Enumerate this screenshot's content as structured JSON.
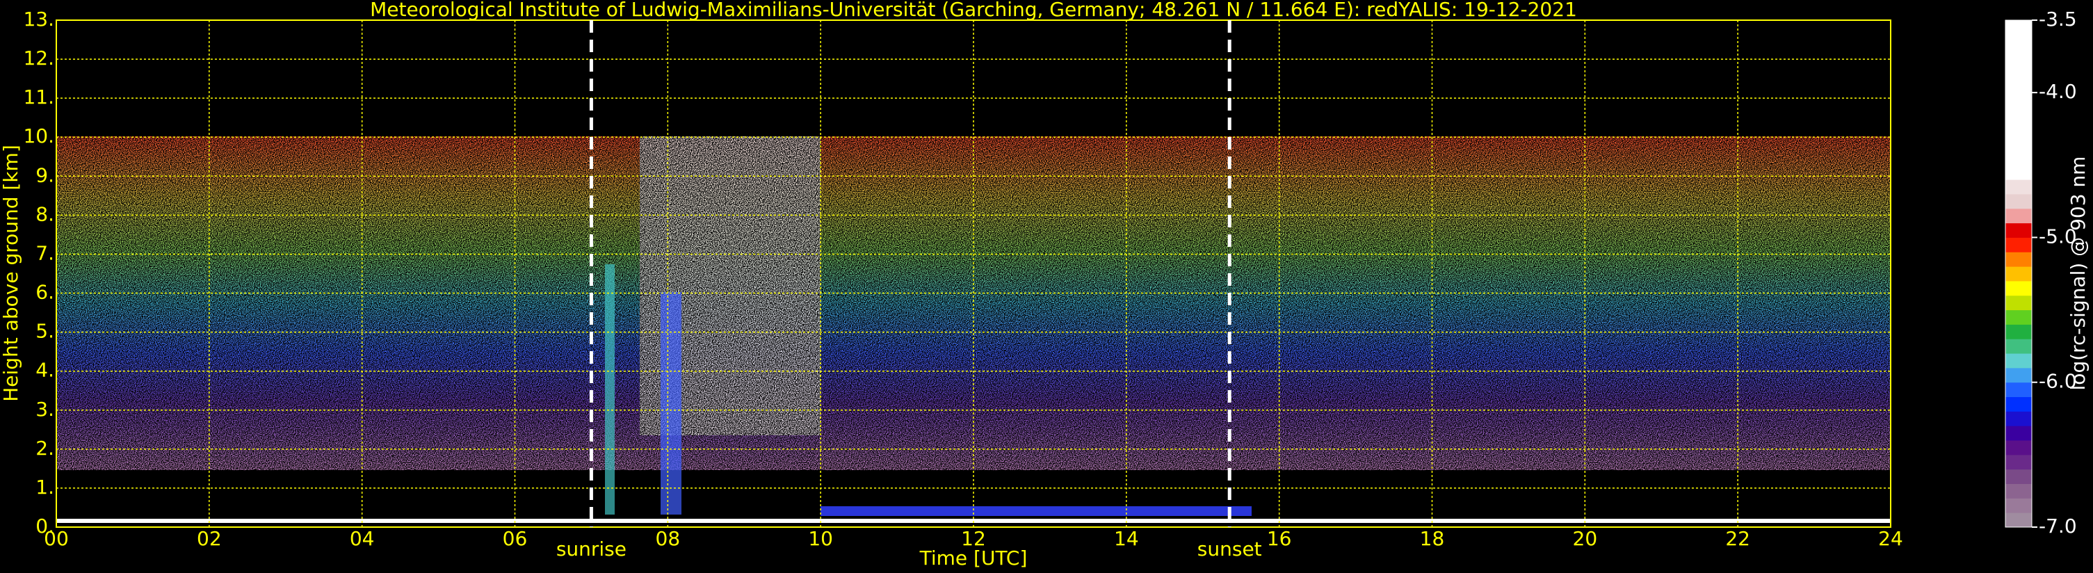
{
  "chart_data": {
    "type": "heatmap",
    "title": "Meteorological Institute of Ludwig-Maximilians-Universität (Garching, Germany; 48.261 N / 11.664 E):    redYALIS: 19-12-2021",
    "x_label": "Time [UTC]",
    "y_label": "Height above ground [km]",
    "xlim": [
      0,
      24
    ],
    "xticks": [
      {
        "value": 0,
        "label": "00"
      },
      {
        "value": 2,
        "label": "02"
      },
      {
        "value": 4,
        "label": "04"
      },
      {
        "value": 6,
        "label": "06"
      },
      {
        "value": 8,
        "label": "08"
      },
      10,
      12,
      14,
      16,
      18,
      20,
      22,
      24
    ],
    "ylim": [
      0,
      13
    ],
    "yticks": [
      {
        "value": 0,
        "label": "0."
      },
      {
        "value": 1,
        "label": "1."
      },
      {
        "value": 2,
        "label": "2."
      },
      {
        "value": 3,
        "label": "3."
      },
      {
        "value": 4,
        "label": "4."
      },
      {
        "value": 5,
        "label": "5."
      },
      {
        "value": 6,
        "label": "6."
      },
      {
        "value": 7,
        "label": "7."
      },
      {
        "value": 8,
        "label": "8."
      },
      {
        "value": 9,
        "label": "9."
      },
      {
        "value": 10,
        "label": "10."
      },
      {
        "value": 11,
        "label": "11."
      },
      {
        "value": 12,
        "label": "12."
      },
      {
        "value": 13,
        "label": "13."
      }
    ],
    "grid": true,
    "grid_color": "#ffff00",
    "annotations": [
      {
        "text": "sunrise",
        "x": 7.0
      },
      {
        "text": "sunset",
        "x": 15.35
      }
    ],
    "colorbar": {
      "label": "log(rc-signal) @ 903 nm",
      "clim": [
        -7.0,
        -3.5
      ],
      "ticks": [
        -3.5,
        {
          "value": -4.0,
          "label": "-4.0"
        },
        {
          "value": -5.0,
          "label": "-5.0"
        },
        {
          "value": -6.0,
          "label": "-6.0"
        },
        {
          "value": -7.0,
          "label": "-7.0"
        }
      ],
      "colors": [
        "#a08ca0",
        "#9a7a9a",
        "#8c6490",
        "#7a4a88",
        "#6a2a8a",
        "#5a108a",
        "#3a00a0",
        "#1a10d0",
        "#0030ff",
        "#2060ff",
        "#40a0f0",
        "#60d0d0",
        "#40c080",
        "#20b040",
        "#60d020",
        "#c0e000",
        "#ffff00",
        "#ffc000",
        "#ff8000",
        "#ff2000",
        "#e00000",
        "#f0a0a0",
        "#e8d0d0",
        "#f0e0e0",
        "#ffffff",
        "#ffffff",
        "#ffffff",
        "#ffffff",
        "#ffffff",
        "#ffffff",
        "#ffffff",
        "#ffffff",
        "#ffffff",
        "#ffffff",
        "#ffffff"
      ]
    }
  }
}
